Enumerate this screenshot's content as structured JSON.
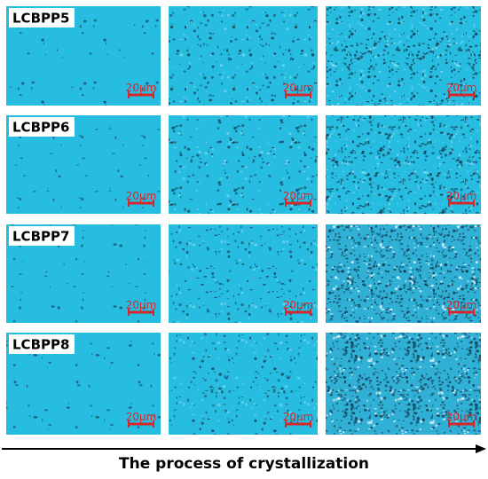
{
  "rows": [
    {
      "label": "LCBPP5",
      "scale_bars": [
        "20μm",
        "20μm",
        "20μm"
      ]
    },
    {
      "label": "LCBPP6",
      "scale_bars": [
        "20μm",
        "20μm",
        "20μm"
      ]
    },
    {
      "label": "LCBPP7",
      "scale_bars": [
        "20μm",
        "20μm",
        "20μm"
      ]
    },
    {
      "label": "LCBPP8",
      "scale_bars": [
        "20μm",
        "20μm",
        "20μm"
      ]
    }
  ],
  "caption": "The process of crystallization"
}
